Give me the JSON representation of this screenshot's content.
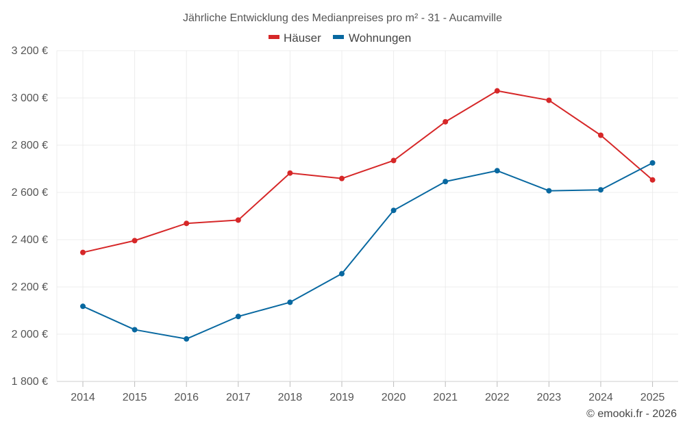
{
  "chart_data": {
    "type": "line",
    "title": "Jährliche Entwicklung des Medianpreises pro m² - 31 - Aucamville",
    "categories": [
      "2014",
      "2015",
      "2016",
      "2017",
      "2018",
      "2019",
      "2020",
      "2021",
      "2022",
      "2023",
      "2024",
      "2025"
    ],
    "series": [
      {
        "name": "Häuser",
        "color": "#d62728",
        "values": [
          2346,
          2396,
          2469,
          2483,
          2682,
          2659,
          2735,
          2899,
          3030,
          2990,
          2842,
          2653
        ]
      },
      {
        "name": "Wohnungen",
        "color": "#0868a0",
        "values": [
          2118,
          2019,
          1980,
          2075,
          2135,
          2256,
          2524,
          2646,
          2692,
          2607,
          2611,
          2725
        ]
      }
    ],
    "ylim": [
      1800,
      3200
    ],
    "y_ticks": [
      1800,
      2000,
      2200,
      2400,
      2600,
      2800,
      3000,
      3200
    ],
    "y_tick_labels": [
      "1 800 €",
      "2 000 €",
      "2 200 €",
      "2 400 €",
      "2 600 €",
      "2 800 €",
      "3 000 €",
      "3 200 €"
    ],
    "xlabel": "",
    "ylabel": "",
    "grid": true,
    "legend_position": "top-center"
  },
  "credit": "© emooki.fr - 2026"
}
